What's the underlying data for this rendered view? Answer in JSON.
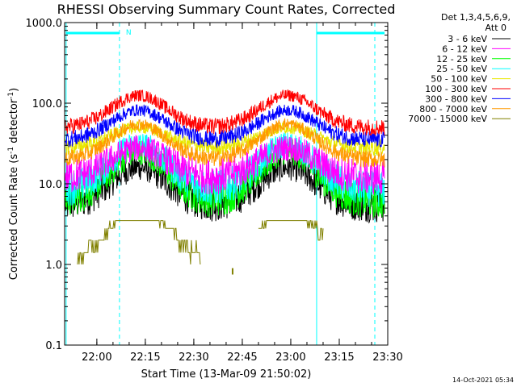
{
  "colors": {
    "background": "#ffffff",
    "axes": "#000000",
    "cyan": "#00ffff"
  },
  "chart_data": {
    "type": "line",
    "title": "RHESSI Observing Summary Count Rates, Corrected",
    "xlabel": "Start Time (13-Mar-09 21:50:02)",
    "ylabel_parts": [
      "Corrected Count Rate (s",
      "-1",
      " detector",
      "-1",
      ")"
    ],
    "y_scale": "log",
    "ylim": [
      0.1,
      1000.0
    ],
    "xlim": [
      "21:50:02",
      "23:30"
    ],
    "x_ticks": [
      "22:00",
      "22:15",
      "22:30",
      "22:45",
      "23:00",
      "23:15",
      "23:30"
    ],
    "y_ticks": [
      "0.1",
      "1.0",
      "10.0",
      "100.0",
      "1000.0"
    ],
    "legend_position": "top-right, outside plot",
    "legend_header": [
      "Det 1,3,4,5,6,9,",
      "Att 0"
    ],
    "series": [
      {
        "name": "3 - 6 keV",
        "color": "#000000",
        "base": 5.5,
        "peak": 16
      },
      {
        "name": "6 - 12 keV",
        "color": "#ff00ff",
        "base": 12,
        "peak": 28
      },
      {
        "name": "12 - 25 keV",
        "color": "#00ff00",
        "base": 6.2,
        "peak": 25
      },
      {
        "name": "25 - 50 keV",
        "color": "#00ffff",
        "base": 8.5,
        "peak": 31
      },
      {
        "name": "50 - 100 keV",
        "color": "#e8e800",
        "base": 28,
        "peak": 50
      },
      {
        "name": "100 - 300 keV",
        "color": "#ff0000",
        "base": 50,
        "peak": 125
      },
      {
        "name": "300 - 800 keV",
        "color": "#0000ff",
        "base": 35,
        "peak": 82
      },
      {
        "name": "800 - 7000 keV",
        "color": "#ff9900",
        "base": 20,
        "peak": 55
      },
      {
        "name": "7000 - 15000 keV",
        "color": "#808000",
        "base": 1.0,
        "peak": 3.5
      }
    ],
    "flag_marker": "N",
    "timestamp": "14-Oct-2021 05:34"
  }
}
